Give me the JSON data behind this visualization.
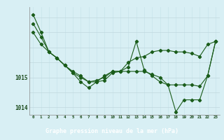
{
  "title": "Graphe pression niveau de la mer (hPa)",
  "hours": [
    0,
    1,
    2,
    3,
    4,
    5,
    6,
    7,
    8,
    9,
    10,
    11,
    12,
    13,
    14,
    15,
    16,
    17,
    18,
    19,
    20,
    21,
    22,
    23
  ],
  "line1": [
    1016.5,
    1016.1,
    1015.85,
    1015.65,
    1015.4,
    1015.2,
    1015.05,
    1014.85,
    1014.85,
    1014.9,
    1015.15,
    1015.2,
    1015.5,
    1015.65,
    1015.7,
    1015.85,
    1015.9,
    1015.9,
    1015.85,
    1015.85,
    1015.8,
    1015.7,
    1016.1,
    1016.2
  ],
  "line2": [
    1016.8,
    1016.35,
    1015.85,
    1015.65,
    1015.4,
    1015.15,
    1015.0,
    1014.85,
    1014.9,
    1015.0,
    1015.2,
    1015.2,
    1015.35,
    1016.2,
    1015.25,
    1015.05,
    1014.85,
    1014.75,
    1014.75,
    1014.75,
    1014.75,
    1014.7,
    1015.05,
    1016.2
  ],
  "line3": [
    1017.1,
    1016.5,
    1015.85,
    1015.65,
    1015.4,
    1015.15,
    1014.85,
    1014.65,
    1014.85,
    1015.05,
    1015.2,
    1015.2,
    1015.2,
    1015.2,
    1015.2,
    1015.1,
    1015.0,
    1014.75,
    1013.85,
    1014.25,
    1014.25,
    1014.25,
    1015.05,
    1016.2
  ],
  "bg_color": "#d8eff4",
  "line_color": "#1a5c1a",
  "grid_color_v": "#c8e4ea",
  "grid_color_h": "#c0d8de",
  "label_bg": "#2e6b2e",
  "label_fg": "#ffffff",
  "ylim": [
    1013.75,
    1017.35
  ],
  "yticks": [
    1014,
    1015
  ],
  "figsize": [
    3.2,
    2.0
  ],
  "dpi": 100
}
